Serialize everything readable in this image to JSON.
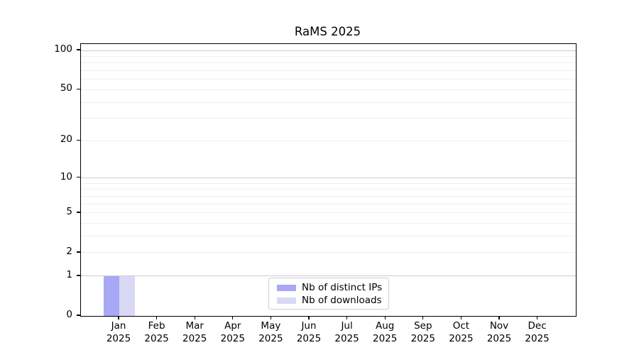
{
  "title": "RaMS 2025",
  "legend": {
    "items": [
      {
        "label": "Nb of distinct IPs",
        "color": "#a8a8f4"
      },
      {
        "label": "Nb of downloads",
        "color": "#d9d9f6"
      }
    ]
  },
  "chart_data": {
    "type": "bar",
    "title": "RaMS 2025",
    "categories": [
      "Jan",
      "Feb",
      "Mar",
      "Apr",
      "May",
      "Jun",
      "Jul",
      "Aug",
      "Sep",
      "Oct",
      "Nov",
      "Dec"
    ],
    "year_label": "2025",
    "series": [
      {
        "name": "Nb of distinct IPs",
        "color": "#a8a8f4",
        "values": [
          1,
          0,
          0,
          0,
          0,
          0,
          0,
          0,
          0,
          0,
          0,
          0
        ]
      },
      {
        "name": "Nb of downloads",
        "color": "#d9d9f6",
        "values": [
          1,
          0,
          0,
          0,
          0,
          0,
          0,
          0,
          0,
          0,
          0,
          0
        ]
      }
    ],
    "yscale": "log1p",
    "ylim": [
      0,
      112
    ],
    "y_tick_values": [
      0,
      1,
      2,
      5,
      10,
      20,
      50,
      100
    ],
    "y_tick_labels": [
      "0",
      "1",
      "2",
      "5",
      "10",
      "20",
      "50",
      "100"
    ],
    "grid": {
      "on": true,
      "major_values": [
        1,
        10,
        100
      ],
      "minor_values": [
        2,
        3,
        4,
        5,
        6,
        7,
        8,
        9,
        20,
        30,
        40,
        50,
        60,
        70,
        80,
        90
      ],
      "major_color": "#cccccc",
      "minor_color": "#efefef"
    },
    "legend_position": "lower center",
    "xlabel": "",
    "ylabel": ""
  }
}
